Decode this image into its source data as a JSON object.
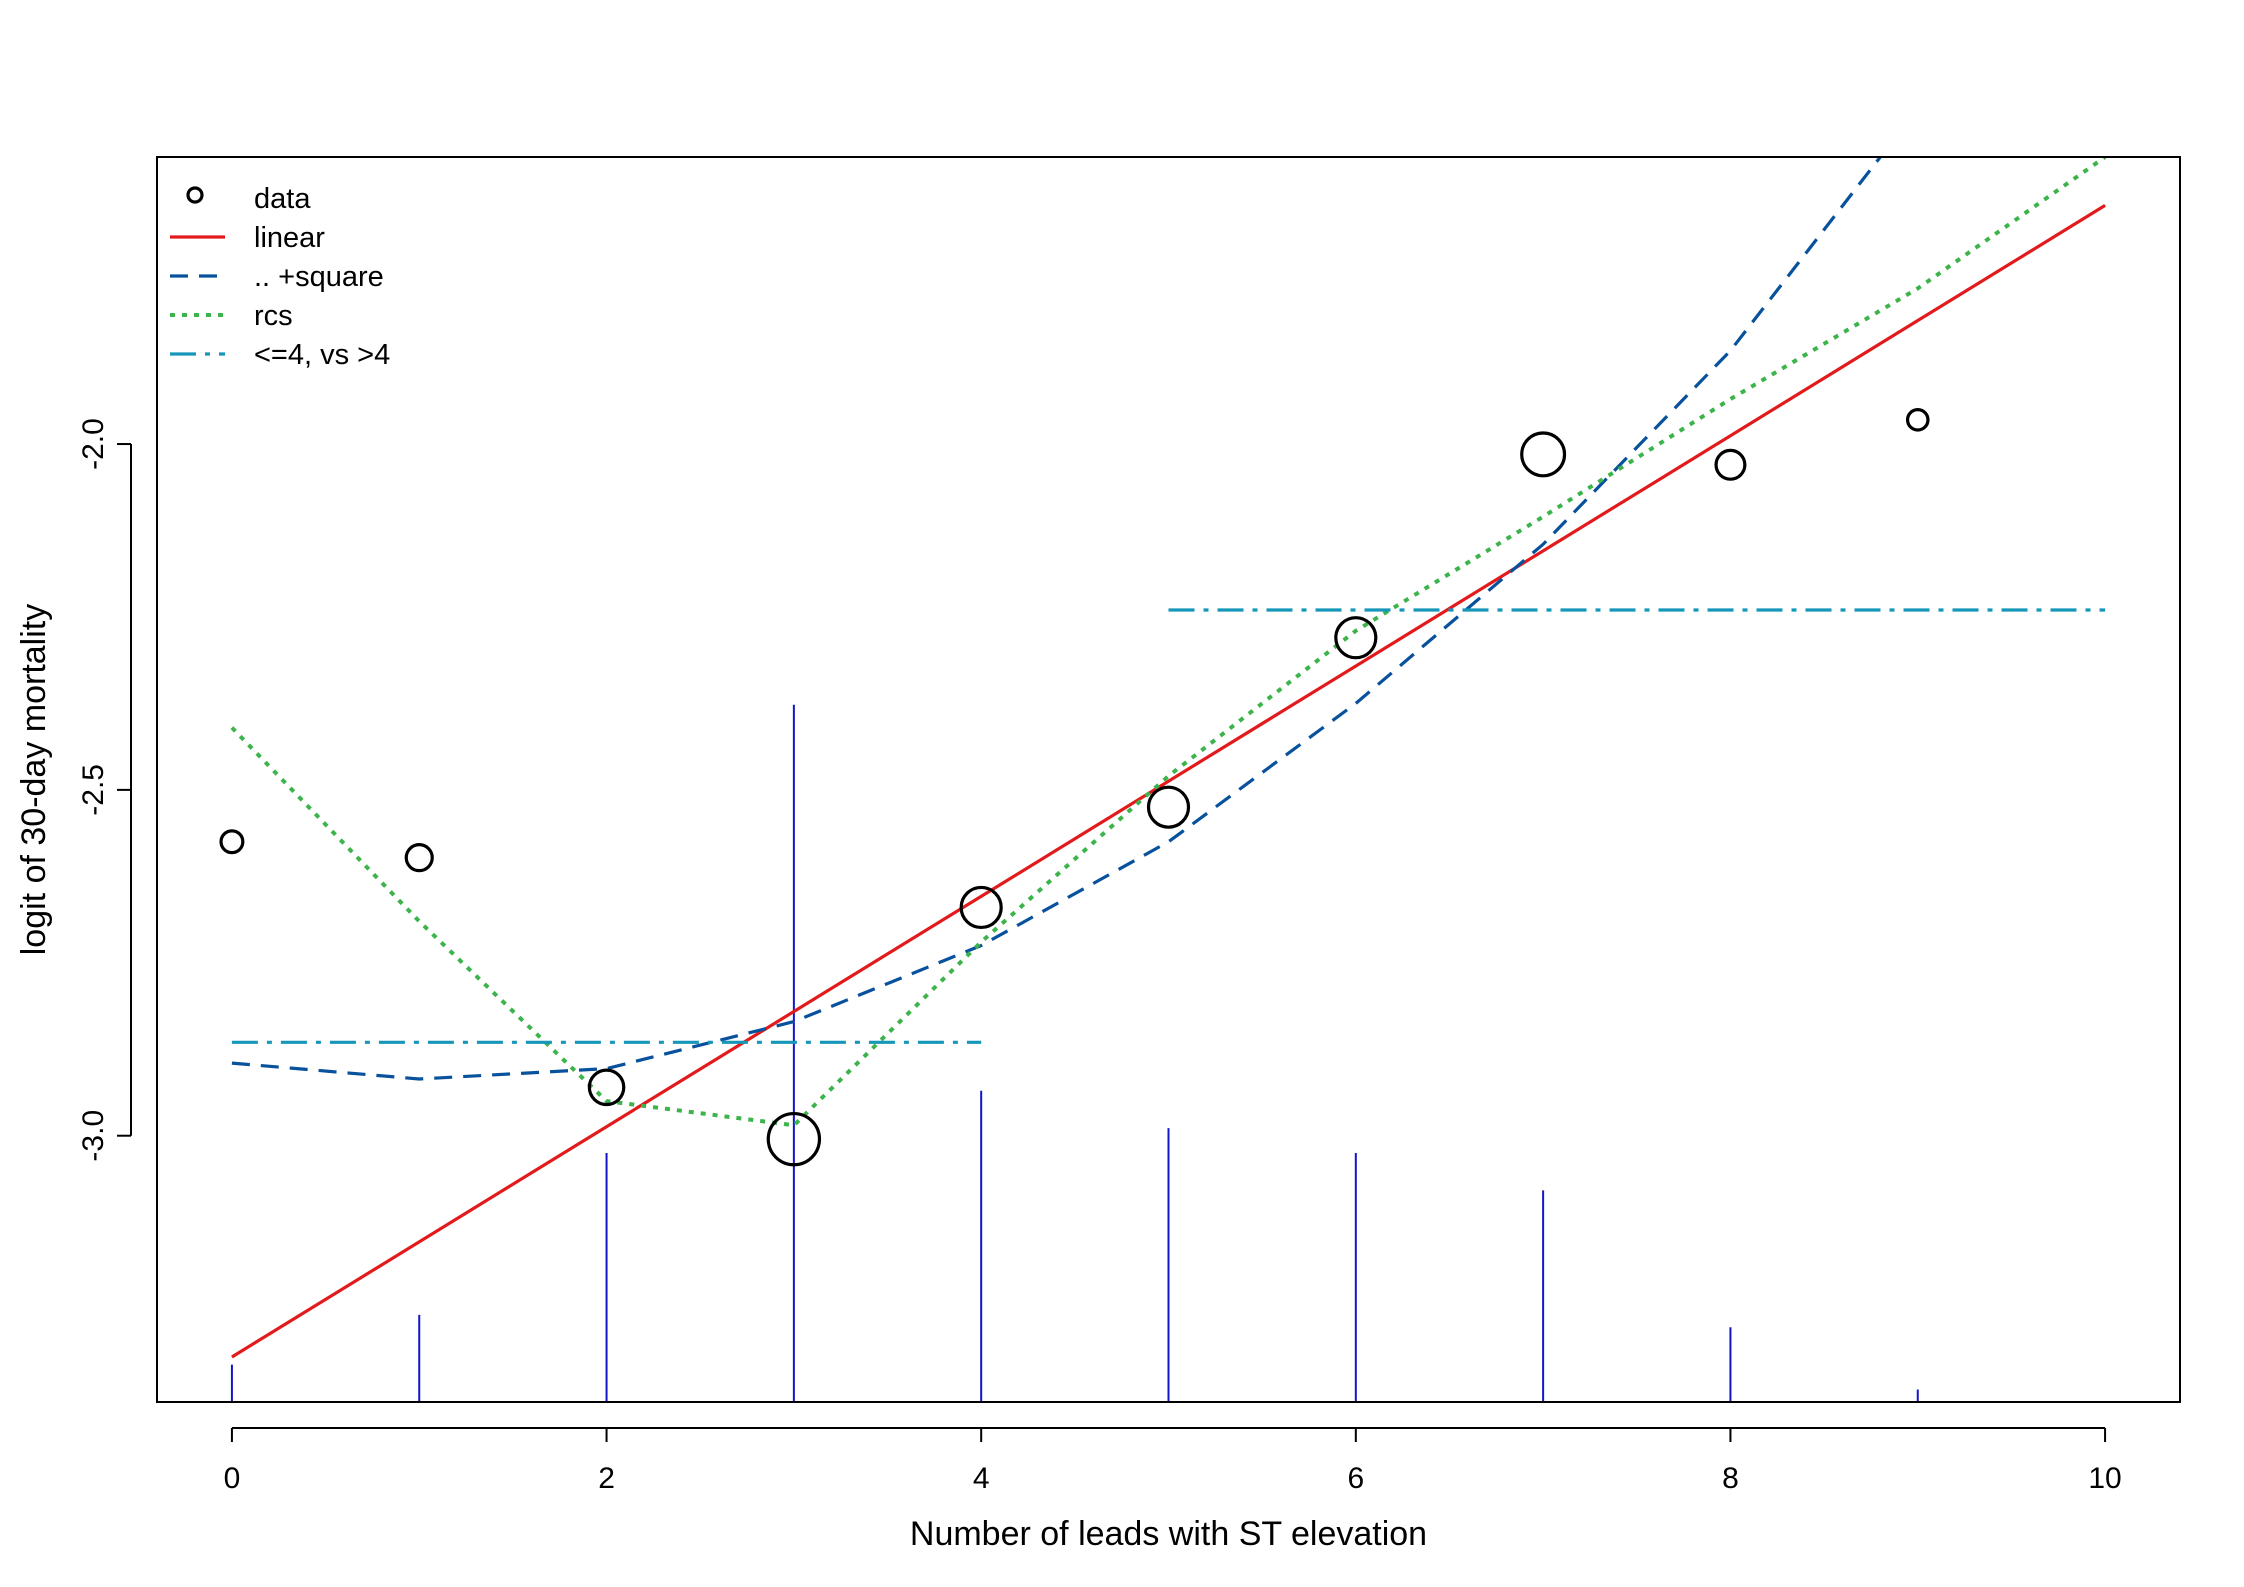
{
  "chart_data": {
    "type": "scatter",
    "title": "",
    "xlabel": "Number of leads with ST elevation",
    "ylabel": "logit of 30-day mortality",
    "xlim": [
      -0.4,
      10.4
    ],
    "ylim": [
      -3.385,
      -1.585
    ],
    "x_ticks": [
      0,
      2,
      4,
      6,
      8,
      10
    ],
    "x_tick_labels": [
      "0",
      "2",
      "4",
      "6",
      "8",
      "10"
    ],
    "y_ticks": [
      -3.0,
      -2.5,
      -2.0
    ],
    "y_tick_labels": [
      "-3.0",
      "-2.5",
      "-2.0"
    ],
    "grid": false,
    "legend_position": "top-left",
    "colors": {
      "data": "#000000",
      "linear": "#e31a1c",
      "square": "#08519c",
      "rcs": "#3cb44b",
      "step": "#1696b8",
      "rug": "#1414c8"
    },
    "legend": [
      {
        "key": "data",
        "label": "data",
        "style": "circle"
      },
      {
        "key": "linear",
        "label": "linear",
        "style": "solid"
      },
      {
        "key": "square",
        "label": ".. +square",
        "style": "dashed"
      },
      {
        "key": "rcs",
        "label": "rcs",
        "style": "dotted"
      },
      {
        "key": "step",
        "label": "<=4, vs >4",
        "style": "dashdot"
      }
    ],
    "points": [
      {
        "x": 0,
        "y": -2.575,
        "size": 0.35
      },
      {
        "x": 1,
        "y": -2.598,
        "size": 0.5
      },
      {
        "x": 2,
        "y": -2.93,
        "size": 0.8
      },
      {
        "x": 3,
        "y": -3.005,
        "size": 1.4
      },
      {
        "x": 4,
        "y": -2.67,
        "size": 1.0
      },
      {
        "x": 5,
        "y": -2.525,
        "size": 1.0
      },
      {
        "x": 6,
        "y": -2.28,
        "size": 1.0
      },
      {
        "x": 7,
        "y": -2.015,
        "size": 1.1
      },
      {
        "x": 8,
        "y": -2.03,
        "size": 0.6
      },
      {
        "x": 9,
        "y": -1.965,
        "size": 0.3
      }
    ],
    "series": [
      {
        "key": "linear",
        "name": "linear",
        "x": [
          0,
          10
        ],
        "y": [
          -3.32,
          -1.655
        ]
      },
      {
        "key": "square",
        "name": ".. +square",
        "x": [
          0,
          1,
          2,
          3,
          4,
          5,
          6,
          7,
          8,
          8.8
        ],
        "y": [
          -2.895,
          -2.918,
          -2.903,
          -2.835,
          -2.725,
          -2.575,
          -2.375,
          -2.145,
          -1.865,
          -1.585
        ]
      },
      {
        "key": "rcs",
        "name": "rcs",
        "x": [
          0,
          1,
          2,
          3,
          4,
          5,
          6,
          7,
          8,
          9,
          10
        ],
        "y": [
          -2.41,
          -2.69,
          -2.95,
          -2.985,
          -2.72,
          -2.48,
          -2.27,
          -2.105,
          -1.935,
          -1.775,
          -1.585
        ]
      },
      {
        "key": "step",
        "name": "<=4, vs >4",
        "segments": [
          {
            "x": [
              0,
              4
            ],
            "y": [
              -2.865,
              -2.865
            ]
          },
          {
            "x": [
              5,
              10
            ],
            "y": [
              -2.24,
              -2.24
            ]
          }
        ]
      }
    ],
    "rug": {
      "x": [
        0,
        1,
        2,
        3,
        4,
        5,
        6,
        7,
        8,
        9
      ],
      "height": [
        0.03,
        0.07,
        0.2,
        0.56,
        0.25,
        0.22,
        0.2,
        0.17,
        0.06,
        0.01
      ]
    }
  }
}
